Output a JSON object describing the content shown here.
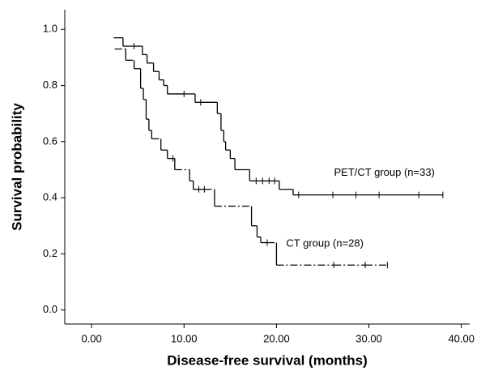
{
  "chart_data": {
    "type": "step",
    "x_label": "Disease-free survival (months)",
    "y_label": "Survival probability",
    "xlim": [
      -2.9,
      40.9
    ],
    "ylim": [
      -0.05,
      1.07
    ],
    "xticks": [
      {
        "value": 0,
        "label": "0.00"
      },
      {
        "value": 10,
        "label": "10.00"
      },
      {
        "value": 20,
        "label": "20.00"
      },
      {
        "value": 30,
        "label": "30.00"
      },
      {
        "value": 40,
        "label": "40.00"
      }
    ],
    "yticks": [
      {
        "value": 0,
        "label": "0.0"
      },
      {
        "value": 0.2,
        "label": "0.2"
      },
      {
        "value": 0.4,
        "label": "0.4"
      },
      {
        "value": 0.6,
        "label": "0.6"
      },
      {
        "value": 0.8,
        "label": "0.8"
      },
      {
        "value": 1.0,
        "label": "1.0"
      }
    ],
    "series": [
      {
        "name": "PET/CT group (n=33)",
        "color": "#000000",
        "line_style": "solid",
        "x": [
          2.4,
          3.4,
          4.6,
          5.5,
          6.0,
          6.7,
          7.3,
          7.8,
          8.2,
          10.0,
          11.2,
          11.8,
          13.6,
          14.0,
          14.3,
          14.5,
          15.0,
          15.5,
          17.1,
          17.8,
          18.5,
          19.2,
          19.8,
          20.3,
          21.8,
          22.4,
          26.1,
          28.6,
          31.1,
          35.4,
          38.0
        ],
        "values": [
          0.97,
          0.94,
          0.94,
          0.91,
          0.88,
          0.85,
          0.82,
          0.8,
          0.77,
          0.77,
          0.74,
          0.74,
          0.7,
          0.64,
          0.6,
          0.57,
          0.54,
          0.5,
          0.46,
          0.46,
          0.46,
          0.46,
          0.46,
          0.43,
          0.41,
          0.41,
          0.41,
          0.41,
          0.41,
          0.41,
          0.41
        ]
      },
      {
        "name": "CT group (n=28)",
        "color": "#000000",
        "line_style": "dashed",
        "x": [
          2.5,
          3.7,
          4.6,
          5.3,
          5.6,
          5.9,
          6.2,
          6.5,
          7.5,
          8.2,
          8.8,
          9.0,
          10.6,
          11.0,
          11.6,
          12.2,
          13.3,
          17.3,
          17.9,
          18.3,
          19.0,
          20.0,
          26.2,
          29.6,
          32.0
        ],
        "values": [
          0.93,
          0.89,
          0.86,
          0.79,
          0.75,
          0.68,
          0.64,
          0.61,
          0.57,
          0.54,
          0.54,
          0.5,
          0.46,
          0.43,
          0.43,
          0.43,
          0.37,
          0.3,
          0.26,
          0.24,
          0.24,
          0.16,
          0.16,
          0.16,
          0.16
        ]
      }
    ]
  }
}
